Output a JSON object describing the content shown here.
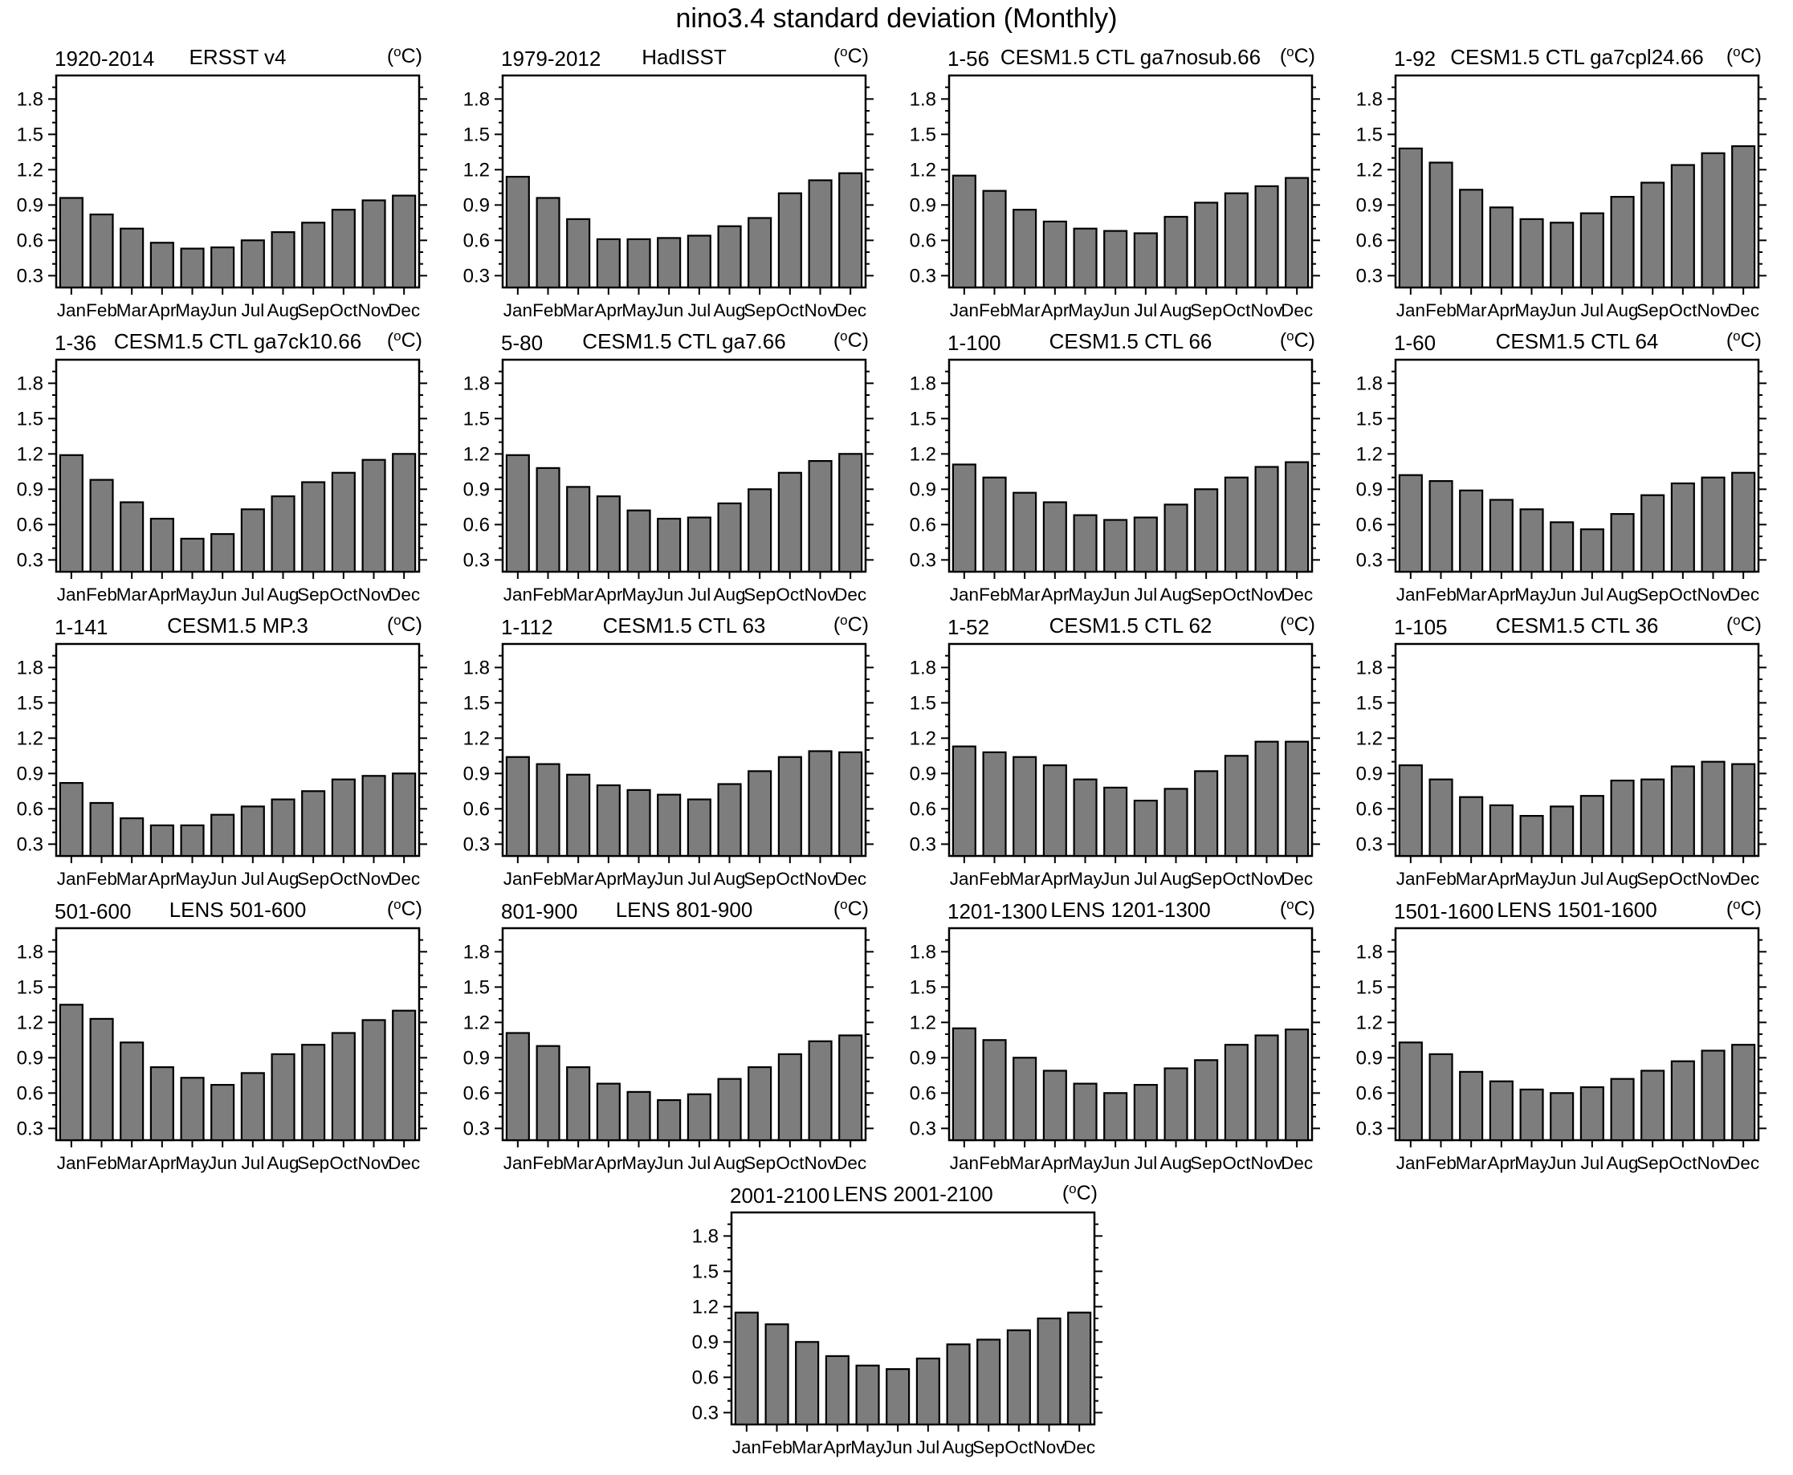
{
  "figure_title": "nino3.4 standard deviation (Monthly)",
  "months": [
    "Jan",
    "Feb",
    "Mar",
    "Apr",
    "May",
    "Jun",
    "Jul",
    "Aug",
    "Sep",
    "Oct",
    "Nov",
    "Dec"
  ],
  "axis": {
    "ymin": 0.2,
    "ymax": 2.0,
    "yticks": [
      0.3,
      0.6,
      0.9,
      1.2,
      1.5,
      1.8
    ],
    "minor_step": 0.1,
    "unit": {
      "open": "(",
      "sup": "o",
      "close": "C)"
    }
  },
  "colors": {
    "background": "#ffffff",
    "bar_fill": "#7d7d7d",
    "bar_stroke": "#000000",
    "axis": "#000000"
  },
  "layout_rows": [
    4,
    4,
    4,
    4,
    1
  ],
  "chart_data": [
    {
      "type": "bar",
      "period": "1920-2014",
      "name": "ERSST v4",
      "ylabel": "",
      "values": [
        0.96,
        0.82,
        0.7,
        0.58,
        0.53,
        0.54,
        0.6,
        0.67,
        0.75,
        0.86,
        0.94,
        0.98
      ]
    },
    {
      "type": "bar",
      "period": "1979-2012",
      "name": "HadISST",
      "ylabel": "",
      "values": [
        1.14,
        0.96,
        0.78,
        0.61,
        0.61,
        0.62,
        0.64,
        0.72,
        0.79,
        1.0,
        1.11,
        1.17
      ]
    },
    {
      "type": "bar",
      "period": "1-56",
      "name": "CESM1.5 CTL ga7nosub.66",
      "ylabel": "",
      "values": [
        1.15,
        1.02,
        0.86,
        0.76,
        0.7,
        0.68,
        0.66,
        0.8,
        0.92,
        1.0,
        1.06,
        1.13
      ]
    },
    {
      "type": "bar",
      "period": "1-92",
      "name": "CESM1.5 CTL ga7cpl24.66",
      "ylabel": "",
      "values": [
        1.38,
        1.26,
        1.03,
        0.88,
        0.78,
        0.75,
        0.83,
        0.97,
        1.09,
        1.24,
        1.34,
        1.4
      ]
    },
    {
      "type": "bar",
      "period": "1-36",
      "name": "CESM1.5 CTL ga7ck10.66",
      "ylabel": "",
      "values": [
        1.19,
        0.98,
        0.79,
        0.65,
        0.48,
        0.52,
        0.73,
        0.84,
        0.96,
        1.04,
        1.15,
        1.2
      ]
    },
    {
      "type": "bar",
      "period": "5-80",
      "name": "CESM1.5 CTL ga7.66",
      "ylabel": "",
      "values": [
        1.19,
        1.08,
        0.92,
        0.84,
        0.72,
        0.65,
        0.66,
        0.78,
        0.9,
        1.04,
        1.14,
        1.2
      ]
    },
    {
      "type": "bar",
      "period": "1-100",
      "name": "CESM1.5 CTL 66",
      "ylabel": "",
      "values": [
        1.11,
        1.0,
        0.87,
        0.79,
        0.68,
        0.64,
        0.66,
        0.77,
        0.9,
        1.0,
        1.09,
        1.13
      ]
    },
    {
      "type": "bar",
      "period": "1-60",
      "name": "CESM1.5 CTL 64",
      "ylabel": "",
      "values": [
        1.02,
        0.97,
        0.89,
        0.81,
        0.73,
        0.62,
        0.56,
        0.69,
        0.85,
        0.95,
        1.0,
        1.04
      ]
    },
    {
      "type": "bar",
      "period": "1-141",
      "name": "CESM1.5 MP.3",
      "ylabel": "",
      "values": [
        0.82,
        0.65,
        0.52,
        0.46,
        0.46,
        0.55,
        0.62,
        0.68,
        0.75,
        0.85,
        0.88,
        0.9
      ]
    },
    {
      "type": "bar",
      "period": "1-112",
      "name": "CESM1.5 CTL 63",
      "ylabel": "",
      "values": [
        1.04,
        0.98,
        0.89,
        0.8,
        0.76,
        0.72,
        0.68,
        0.81,
        0.92,
        1.04,
        1.09,
        1.08
      ]
    },
    {
      "type": "bar",
      "period": "1-52",
      "name": "CESM1.5 CTL 62",
      "ylabel": "",
      "values": [
        1.13,
        1.08,
        1.04,
        0.97,
        0.85,
        0.78,
        0.67,
        0.77,
        0.92,
        1.05,
        1.17,
        1.17
      ]
    },
    {
      "type": "bar",
      "period": "1-105",
      "name": "CESM1.5 CTL 36",
      "ylabel": "",
      "values": [
        0.97,
        0.85,
        0.7,
        0.63,
        0.54,
        0.62,
        0.71,
        0.84,
        0.85,
        0.96,
        1.0,
        0.98
      ]
    },
    {
      "type": "bar",
      "period": "501-600",
      "name": "LENS 501-600",
      "ylabel": "",
      "values": [
        1.35,
        1.23,
        1.03,
        0.82,
        0.73,
        0.67,
        0.77,
        0.93,
        1.01,
        1.11,
        1.22,
        1.3
      ]
    },
    {
      "type": "bar",
      "period": "801-900",
      "name": "LENS 801-900",
      "ylabel": "",
      "values": [
        1.11,
        1.0,
        0.82,
        0.68,
        0.61,
        0.54,
        0.59,
        0.72,
        0.82,
        0.93,
        1.04,
        1.09
      ]
    },
    {
      "type": "bar",
      "period": "1201-1300",
      "name": "LENS 1201-1300",
      "ylabel": "",
      "values": [
        1.15,
        1.05,
        0.9,
        0.79,
        0.68,
        0.6,
        0.67,
        0.81,
        0.88,
        1.01,
        1.09,
        1.14
      ]
    },
    {
      "type": "bar",
      "period": "1501-1600",
      "name": "LENS 1501-1600",
      "ylabel": "",
      "values": [
        1.03,
        0.93,
        0.78,
        0.7,
        0.63,
        0.6,
        0.65,
        0.72,
        0.79,
        0.87,
        0.96,
        1.01
      ]
    },
    {
      "type": "bar",
      "period": "2001-2100",
      "name": "LENS 2001-2100",
      "ylabel": "",
      "values": [
        1.15,
        1.05,
        0.9,
        0.78,
        0.7,
        0.67,
        0.76,
        0.88,
        0.92,
        1.0,
        1.1,
        1.15
      ]
    }
  ]
}
